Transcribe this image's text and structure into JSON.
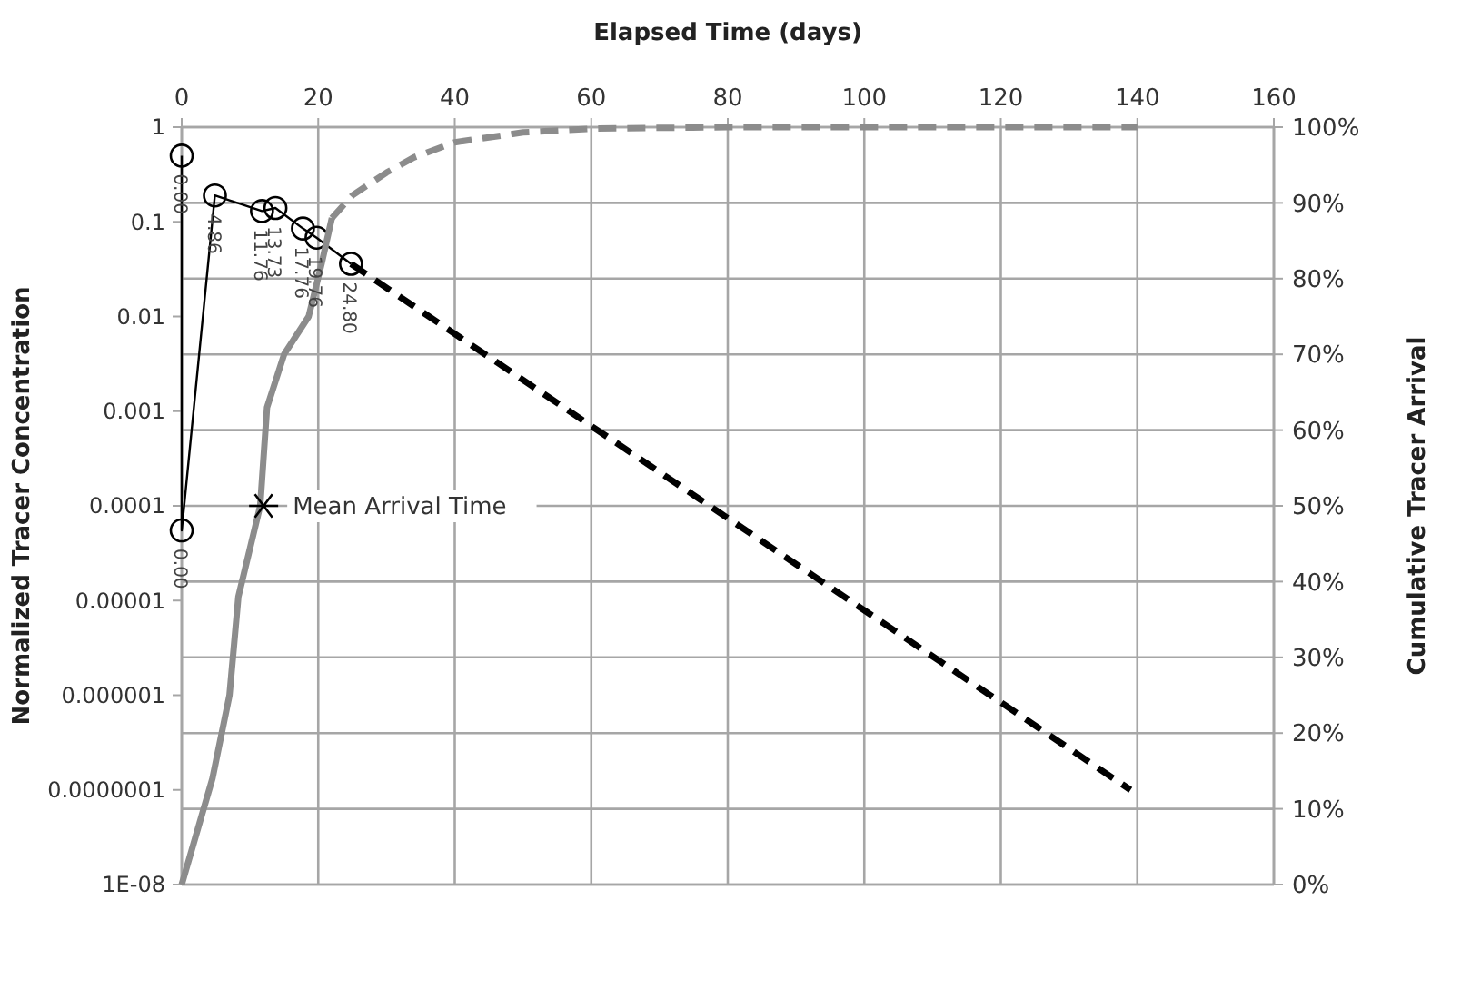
{
  "chart_data": {
    "type": "line",
    "xlabel": "Elapsed Time (days)",
    "ylabel": "Normalized Tracer Concentration",
    "y2label": "Cumulative Tracer Arrival",
    "log": "y",
    "grid": true,
    "xlim": [
      0,
      160
    ],
    "xticks": [
      0,
      20,
      40,
      60,
      80,
      100,
      120,
      140,
      160
    ],
    "ylim": [
      1e-08,
      1
    ],
    "yticks": [
      1,
      0.1,
      0.01,
      0.001,
      0.0001,
      {
        "value": 1e-05,
        "label": "0.00001"
      },
      {
        "value": 1e-06,
        "label": "0.000001"
      },
      {
        "value": 1e-07,
        "label": "0.0000001"
      },
      {
        "value": 1e-08,
        "label": "1E-08"
      }
    ],
    "y2lim": [
      0,
      100
    ],
    "y2ticks": [
      {
        "value": 0,
        "label": "0%"
      },
      {
        "value": 10,
        "label": "10%"
      },
      {
        "value": 20,
        "label": "20%"
      },
      {
        "value": 30,
        "label": "30%"
      },
      {
        "value": 40,
        "label": "40%"
      },
      {
        "value": 50,
        "label": "50%"
      },
      {
        "value": 60,
        "label": "60%"
      },
      {
        "value": 70,
        "label": "70%"
      },
      {
        "value": 80,
        "label": "80%"
      },
      {
        "value": 90,
        "label": "90%"
      },
      {
        "value": 100,
        "label": "100%"
      }
    ],
    "series": [
      {
        "color": "#000000",
        "marker": "circle",
        "line_style": "solid",
        "x": [
          0,
          0,
          4.86,
          11.76,
          13.73,
          17.76,
          19.76,
          24.8
        ],
        "values": [
          0.5,
          5.5e-05,
          0.19,
          0.13,
          0.14,
          0.085,
          0.068,
          0.036
        ]
      },
      {
        "color": "#000000",
        "marker": "none",
        "line_style": "dashed",
        "x": [
          24.8,
          139
        ],
        "values": [
          0.036,
          1e-07
        ]
      },
      {
        "color": "#8c8c8c",
        "marker": "none",
        "line_style": "solid",
        "axis": "y2",
        "x": [
          0,
          4.5,
          7,
          8.3,
          11.5,
          12.5,
          15,
          18.6,
          20.5,
          22
        ],
        "values": [
          0,
          14,
          25,
          38,
          50,
          63,
          70,
          75,
          82,
          88
        ]
      },
      {
        "color": "#8c8c8c",
        "marker": "none",
        "line_style": "dashed",
        "axis": "y2",
        "x": [
          22,
          25,
          30,
          34,
          40,
          50,
          60,
          80,
          100,
          140
        ],
        "values": [
          88,
          91,
          94,
          96,
          98,
          99.3,
          99.8,
          100,
          100,
          100
        ]
      },
      {
        "type": "scatter",
        "color": "#000000",
        "marker": "cross",
        "x": [
          12
        ],
        "values": [
          0.0001
        ]
      }
    ],
    "annotations": [
      {
        "text": "0.00",
        "x": 0,
        "y": 0.5
      },
      {
        "text": "0.00",
        "x": 0,
        "y": 5.5e-05
      },
      {
        "text": "4.86",
        "x": 4.86,
        "y": 0.19
      },
      {
        "text": "11.76",
        "x": 11.76,
        "y": 0.13
      },
      {
        "text": "13.73",
        "x": 13.73,
        "y": 0.14
      },
      {
        "text": "17.76",
        "x": 17.76,
        "y": 0.085
      },
      {
        "text": "19.76",
        "x": 19.76,
        "y": 0.068
      },
      {
        "text": "24.80",
        "x": 24.8,
        "y": 0.036
      },
      {
        "text": "Mean Arrival Time",
        "x": 12,
        "y": 0.0001
      }
    ]
  }
}
